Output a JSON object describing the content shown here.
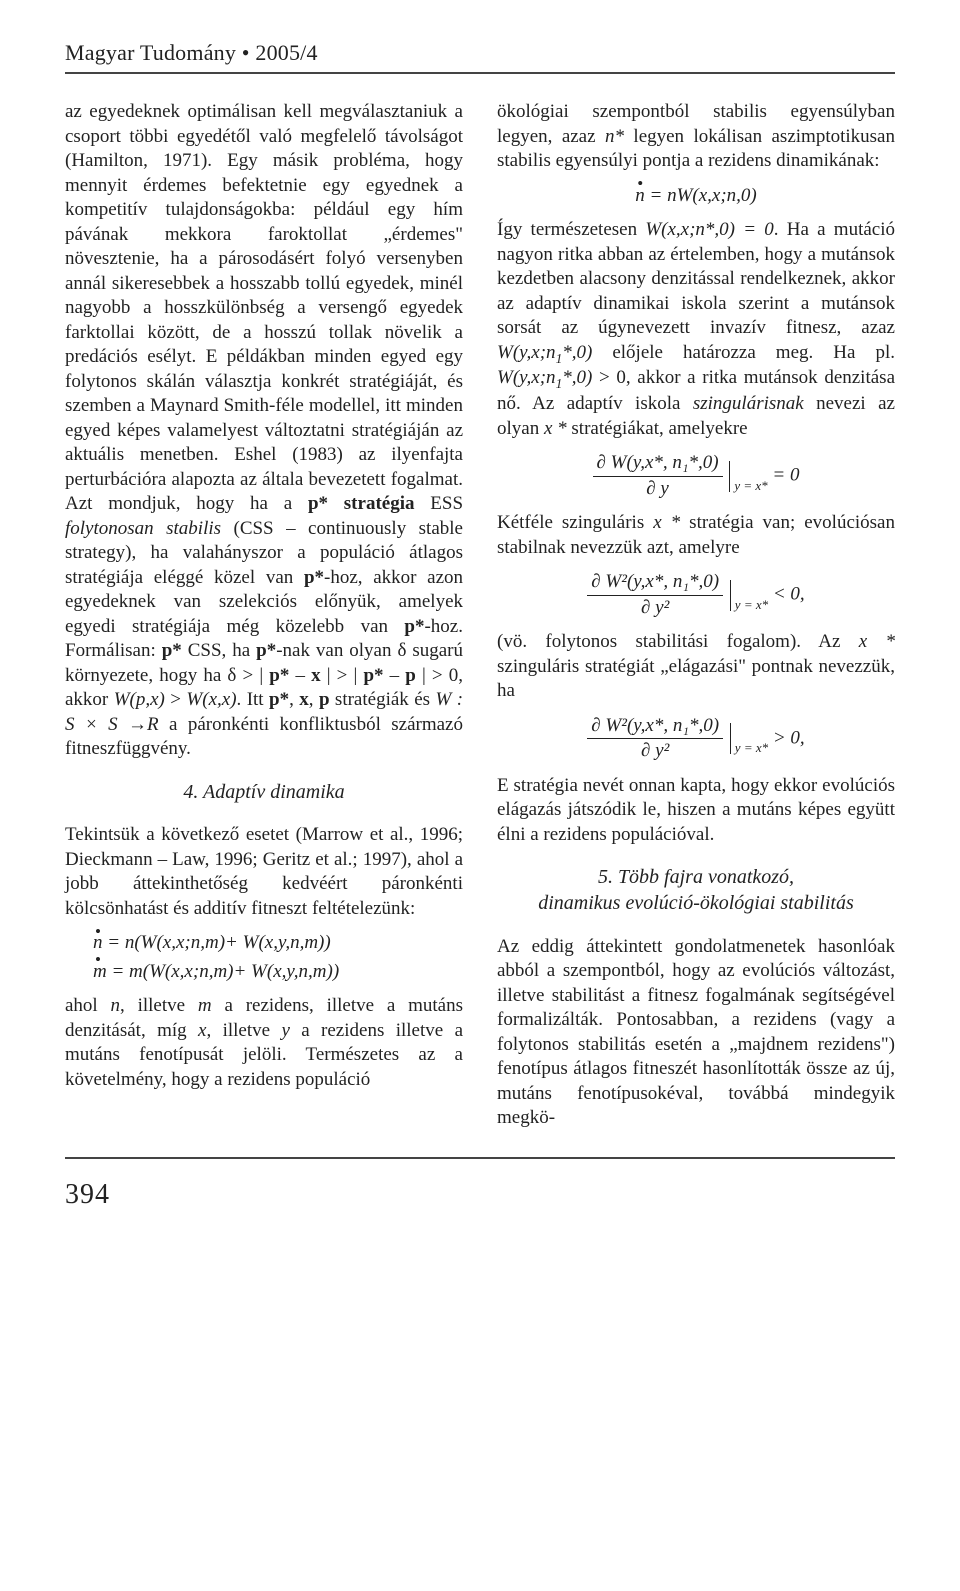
{
  "header": {
    "running": "Magyar Tudomány • 2005/4"
  },
  "left": {
    "para1": "az egyedeknek optimálisan kell megválasztaniuk a csoport többi egyedétől való megfelelő távolságot (Hamilton, 1971). Egy másik probléma, hogy mennyit érdemes befektetnie egy egyednek a kompetitív tulajdonságokba: például egy hím pávának mekkora faroktollat „érdemes\" növesztenie, ha a párosodásért folyó versenyben annál sikeresebbek a hosszabb tollú egyedek, minél nagyobb a hosszkülönbség a versengő egyedek farktollai között, de a hosszú tollak növelik a predációs esélyt. E példákban minden egyed egy folytonos skálán választja konkrét stratégiáját, és szemben a Maynard Smith-féle modellel, itt minden egyed képes valamelyest változtatni stratégiáján az aktuális menetben. Eshel (1983) az ilyenfajta perturbációra alapozta az általa bevezetett fogalmat. Azt mondjuk, hogy ha a ",
    "p_star_strat": "p* stratégia",
    "para1b": "ESS ",
    "css_ital": "folytonosan stabilis",
    "para1c": " (CSS – continuously stable strategy), ha valahányszor a populáció átlagos stratégiája eléggé közel van ",
    "p_star1": "p*",
    "para1d": "-hoz, akkor azon egyedeknek van szelekciós előnyük, amelyek egyedi stratégiája még közelebb van ",
    "p_star2": "p*",
    "para1e": "-hoz. Formálisan: ",
    "p_star3": "p*",
    "para1f": " CSS, ha ",
    "p_star4": "p*",
    "para1g": "-nak van olyan δ sugarú környezete, hogy ha δ > | ",
    "p_star5": "p*",
    "para1h": " – ",
    "x1": "x",
    "para1i": " | > | ",
    "p_star6": "p*",
    "para1j": " – ",
    "p1": "p",
    "para1k": " | > 0, akkor ",
    "Wpx": "W(p,x)",
    "para1l": " > ",
    "Wxx": "W(x,x)",
    "para1m": ". Itt ",
    "p_star7": "p*",
    "para1n": ", ",
    "x2": "x",
    "para1o": ", ",
    "p2": "p",
    "para1p": " stratégiák és ",
    "W_SS": "W : S × S",
    "para1q": " →",
    "R_sym": "R",
    "para1r": " a páronkénti konfliktusból származó fitneszfüggvény.",
    "section4": "4. Adaptív dinamika",
    "para2a": "Tekintsük a következő esetet (Marrow et al., 1996; Dieckmann – Law, 1996; Geritz et al.; 1997), ahol a jobb áttekinthetőség kedvéért páronkénti kölcsönhatást és additív fitneszt feltételezünk:",
    "eq_n": "n = n(W(x,x;n,m)+ W(x,y,n,m))",
    "eq_m": "m = m(W(x,x;n,m)+ W(x,y,n,m))",
    "para3": "ahol ",
    "n_it": "n",
    "para3b": ", illetve ",
    "m_it": "m",
    "para3c": " a rezidens, illetve a mutáns denzitását, míg ",
    "x_it": "x",
    "para3d": ", illetve ",
    "y_it": "y",
    "para3e": " a rezidens illetve a mutáns fenotípusát jelöli. Természetes az a követelmény, hogy a rezidens populáció"
  },
  "right": {
    "para1a": "ökológiai szempontból stabilis egyensúlyban legyen, azaz ",
    "n_star": "n*",
    "para1b": " legyen lokálisan aszimptotikusan stabilis egyensúlyi pontja a rezidens dinamikának:",
    "eq1": "n = nW(x,x;n,0)",
    "para2a": "Így természetesen ",
    "Wexpr": "W(x,x;n*,0) = 0",
    "para2b": ". Ha a mutáció nagyon ritka abban az értelemben, hogy a mutánsok kezdetben alacsony denzitással rendelkeznek, akkor az adaptív dinamikai iskola szerint a mutánsok sorsát az úgynevezett invazív fitnesz, azaz ",
    "Wyx": "W(y,x;n",
    "sub1a": "1",
    "Wyx_b": "*,0)",
    "para2c": " előjele határozza meg. Ha pl. ",
    "Wyx2": "W(y,x;n",
    "sub1b": "1",
    "Wyx2_b": "*,0)",
    "para2d": " > 0, akkor a ritka mutánsok denzitása nő. Az adaptív iskola ",
    "szing": "szingulárisnak",
    "para2e": " nevezi az olyan ",
    "x_star": "x *",
    "para2f": " stratégiákat, amelyekre",
    "frac1_num": "∂ W(y,x*, n₁*,0)",
    "frac1_den": "∂ y",
    "eq_eval": "y = x*",
    "eq_zero": " = 0",
    "para3a": "Kétféle szinguláris ",
    "x_star2": "x *",
    "para3b": " stratégia van; evolúciósan stabilnak nevezzük azt, amelyre",
    "frac2_num": "∂ W²(y,x*, n₁*,0)",
    "frac2_den": "∂ y²",
    "eq_lt": " < 0,",
    "para4a": "(vö. folytonos stabilitási fogalom). Az ",
    "x_star3": "x *",
    "para4b": " szinguláris stratégiát „elágazási\" pontnak nevezzük, ha",
    "frac3_num": "∂ W²(y,x*, n₁*,0)",
    "frac3_den": "∂ y²",
    "eq_gt": " > 0,",
    "para5": "E stratégia nevét onnan kapta, hogy ekkor evolúciós elágazás játszódik le, hiszen a mutáns képes együtt élni a rezidens populációval.",
    "section5a": "5. Több fajra vonatkozó,",
    "section5b": "dinamikus evolúció-ökológiai stabilitás",
    "para6": "Az eddig áttekintett gondolatmenetek hasonlóak abból a szempontból, hogy az evolúciós változást, illetve stabilitást a fitnesz fogalmának segítségével formalizálták. Pontosabban, a rezidens (vagy a folytonos stabilitás esetén a „majdnem rezidens\") fenotípus átlagos fitneszét hasonlították össze az új, mutáns fenotípusokéval, továbbá mindegyik megkö-"
  },
  "footer": {
    "page": "394"
  }
}
